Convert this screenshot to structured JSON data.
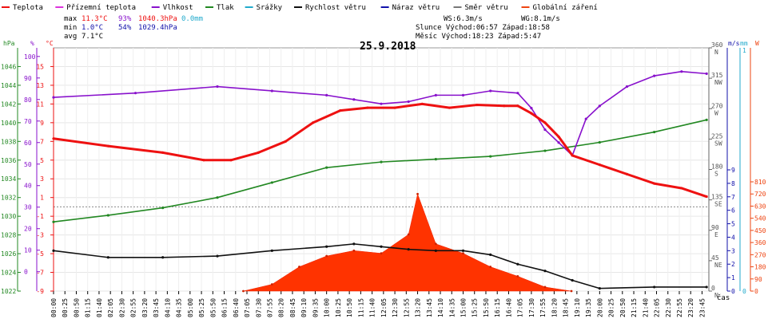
{
  "chart_data": {
    "type": "line",
    "title": "25.9.2018",
    "legend": {
      "placement": "top",
      "items": [
        {
          "label": "Teplota",
          "color": "#ee1111"
        },
        {
          "label": "Přízemní teplota",
          "color": "#dd33dd"
        },
        {
          "label": "Vlhkost",
          "color": "#8811cc"
        },
        {
          "label": "Tlak",
          "color": "#228822"
        },
        {
          "label": "Srážky",
          "color": "#22aacc"
        },
        {
          "label": "Rychlost větru",
          "color": "#111111"
        },
        {
          "label": "Náraz větru",
          "color": "#1111aa"
        },
        {
          "label": "Směr větru",
          "color": "#777777"
        },
        {
          "label": "Globální záření",
          "color": "#ee4411"
        }
      ]
    },
    "stats": [
      {
        "label": "max",
        "temp": "11.3°C",
        "hum": "93%",
        "press": "1040.3hPa",
        "rain": "0.0mm"
      },
      {
        "label": "min",
        "temp": "1.0°C",
        "hum": "54%",
        "press": "1029.4hPa"
      },
      {
        "label": "avg",
        "temp": "7.1°C"
      }
    ],
    "wind_info": {
      "ws": "WS:6.3m/s",
      "wg": "WG:8.1m/s"
    },
    "sun": "Slunce Východ:06:57 Západ:18:58",
    "moon": "Měsíc Východ:18:23 Západ:5:47",
    "axes": {
      "pressure": {
        "unit": "hPa",
        "ticks": [
          "1046",
          "1044",
          "1042",
          "1040",
          "1038",
          "1036",
          "1034",
          "1032",
          "1030",
          "1028",
          "1026",
          "1024",
          "1022"
        ],
        "range": [
          1022,
          1048
        ]
      },
      "humidity": {
        "unit": "%",
        "ticks": [
          "100",
          "90",
          "80",
          "70",
          "60",
          "50",
          "40",
          "30",
          "20",
          "10",
          "0"
        ],
        "range": [
          -9,
          104
        ]
      },
      "temperature": {
        "unit": "°C",
        "ticks": [
          "15",
          "13",
          "11",
          "9",
          "7",
          "5",
          "3",
          "1",
          "-1",
          "-3",
          "-5",
          "-7",
          "-9"
        ],
        "range": [
          -9,
          17
        ]
      },
      "direction": {
        "unit": "",
        "ticks": [
          {
            "v": "360",
            "d": "N"
          },
          {
            "v": "315",
            "d": "NW"
          },
          {
            "v": "270",
            "d": "W"
          },
          {
            "v": "225",
            "d": "SW"
          },
          {
            "v": "180",
            "d": "S"
          },
          {
            "v": "135",
            "d": "SE"
          },
          {
            "v": "90",
            "d": "E"
          },
          {
            "v": "45",
            "d": "NE"
          },
          {
            "v": "0",
            "d": "N"
          }
        ]
      },
      "wind": {
        "unit": "m/s",
        "ticks": [
          "9",
          "8",
          "7",
          "6",
          "5",
          "4",
          "3",
          "2",
          "1",
          "0"
        ],
        "range": [
          0,
          9
        ]
      },
      "rain": {
        "unit": "mm",
        "ticks": [
          "1",
          "0"
        ]
      },
      "radiation": {
        "unit": "W",
        "ticks": [
          "810",
          "720",
          "630",
          "540",
          "450",
          "360",
          "270",
          "180",
          "90",
          "0"
        ],
        "range": [
          0,
          810
        ]
      },
      "time_label": "čas",
      "time_ticks": [
        "00:00",
        "00:25",
        "00:50",
        "01:15",
        "01:40",
        "02:05",
        "02:30",
        "02:55",
        "03:20",
        "03:45",
        "04:10",
        "04:35",
        "05:00",
        "05:25",
        "05:50",
        "06:15",
        "06:40",
        "07:05",
        "07:30",
        "07:55",
        "08:20",
        "08:45",
        "09:10",
        "09:35",
        "10:00",
        "10:25",
        "10:50",
        "11:15",
        "11:40",
        "12:05",
        "12:30",
        "12:55",
        "13:20",
        "13:45",
        "14:10",
        "14:35",
        "15:00",
        "15:25",
        "15:50",
        "16:15",
        "16:40",
        "17:05",
        "17:30",
        "17:55",
        "18:20",
        "18:45",
        "19:10",
        "19:35",
        "20:00",
        "20:25",
        "20:50",
        "21:15",
        "21:40",
        "22:05",
        "22:30",
        "22:55",
        "23:20",
        "23:45"
      ]
    },
    "series": [
      {
        "name": "Teplota",
        "color": "#ee1111",
        "x": [
          "00:00",
          "02:00",
          "04:00",
          "05:30",
          "06:30",
          "07:30",
          "08:30",
          "09:30",
          "10:30",
          "11:30",
          "12:30",
          "13:30",
          "14:30",
          "15:30",
          "16:30",
          "17:00",
          "17:30",
          "18:00",
          "18:30",
          "19:00",
          "20:00",
          "21:00",
          "22:00",
          "23:00",
          "23:55"
        ],
        "values": [
          7.3,
          6.5,
          5.8,
          5.0,
          5.0,
          5.8,
          7.0,
          9.0,
          10.3,
          10.6,
          10.6,
          11.0,
          10.6,
          10.9,
          10.8,
          10.8,
          10.0,
          9.0,
          7.5,
          5.5,
          4.5,
          3.5,
          2.5,
          2.0,
          1.1
        ]
      },
      {
        "name": "Vlhkost",
        "color": "#8811cc",
        "x": [
          "00:00",
          "03:00",
          "06:00",
          "08:00",
          "10:00",
          "11:00",
          "12:00",
          "13:00",
          "14:00",
          "15:00",
          "16:00",
          "17:00",
          "17:30",
          "18:00",
          "18:30",
          "19:00",
          "19:30",
          "20:00",
          "21:00",
          "22:00",
          "23:00",
          "23:55"
        ],
        "values": [
          81,
          83,
          86,
          84,
          82,
          80,
          78,
          79,
          82,
          82,
          84,
          83,
          76,
          66,
          60,
          54,
          71,
          77,
          86,
          91,
          93,
          92
        ]
      },
      {
        "name": "Tlak",
        "color": "#228822",
        "x": [
          "00:00",
          "02:00",
          "04:00",
          "06:00",
          "08:00",
          "10:00",
          "12:00",
          "14:00",
          "16:00",
          "18:00",
          "20:00",
          "22:00",
          "23:55"
        ],
        "values": [
          1029.4,
          1030.1,
          1030.9,
          1032.0,
          1033.6,
          1035.2,
          1035.8,
          1036.1,
          1036.4,
          1037.0,
          1037.9,
          1039.0,
          1040.3
        ]
      },
      {
        "name": "Rychlost větru",
        "color": "#111111",
        "x": [
          "00:00",
          "02:00",
          "04:00",
          "06:00",
          "08:00",
          "10:00",
          "11:00",
          "12:00",
          "13:00",
          "14:00",
          "15:00",
          "16:00",
          "17:00",
          "18:00",
          "19:00",
          "20:00",
          "22:00",
          "23:55"
        ],
        "values": [
          3.0,
          2.5,
          2.5,
          2.6,
          3.0,
          3.3,
          3.5,
          3.3,
          3.1,
          3.0,
          3.0,
          2.7,
          2.0,
          1.5,
          0.8,
          0.2,
          0.3,
          0.3
        ]
      },
      {
        "name": "Globální záření",
        "color": "#ee4411",
        "x": [
          "06:57",
          "08:00",
          "09:00",
          "10:00",
          "11:00",
          "12:00",
          "13:00",
          "13:20",
          "14:00",
          "15:00",
          "16:00",
          "17:00",
          "18:00",
          "18:58"
        ],
        "values": [
          0,
          50,
          180,
          260,
          300,
          280,
          420,
          720,
          350,
          280,
          180,
          110,
          30,
          0
        ]
      }
    ]
  }
}
